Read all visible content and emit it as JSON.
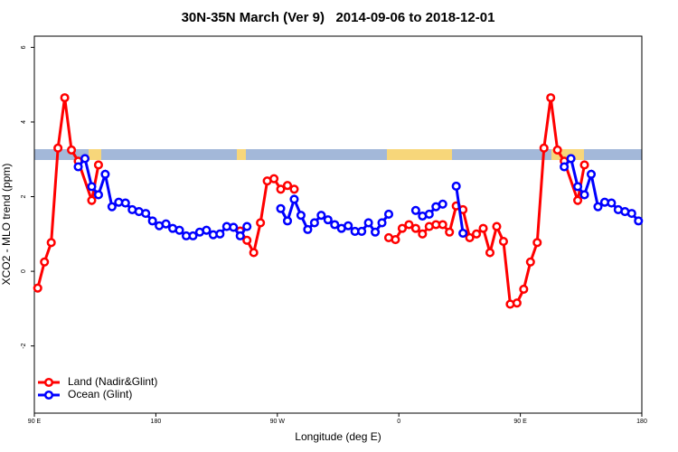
{
  "chart_data": {
    "type": "line",
    "title": "30N-35N March (Ver 9)   2014-09-06 to 2018-12-01",
    "x_label": "Longitude (deg E)",
    "y_label": "XCO2 - MLO trend (ppm)",
    "xlim": [
      90,
      540
    ],
    "ylim": [
      -3.8,
      6.3
    ],
    "xticks": [
      {
        "value": 90,
        "label": "90 E"
      },
      180,
      {
        "value": 270,
        "label": "90 W"
      },
      {
        "value": 360,
        "label": "0"
      },
      {
        "value": 450,
        "label": "90 E"
      },
      {
        "value": 540,
        "label": "180"
      }
    ],
    "yticks": [
      -2,
      0,
      2,
      4,
      6
    ],
    "legend": "bottom-left",
    "series": [
      {
        "name": "Land (Nadir&Glint)",
        "color": "#ff0000",
        "x": [
          92.5,
          97.5,
          102.5,
          107.5,
          112.5,
          117.5,
          122.5,
          132.5,
          137.5,
          190,
          242.5,
          247.5,
          252.5,
          257.5,
          262.5,
          267.5,
          272.5,
          277.5,
          282.5,
          317.5,
          352.5,
          357.5,
          362.5,
          367.5,
          372.5,
          377.5,
          382.5,
          387.5,
          392.5,
          397.5,
          402.5,
          407.5,
          412.5,
          417.5,
          422.5,
          427.5,
          432.5,
          437.5,
          442.5,
          447.5,
          452.5,
          457.5,
          462.5,
          467.5,
          472.5,
          477.5,
          482.5,
          492.5,
          497.5
        ],
        "values": [
          -0.45,
          0.25,
          0.77,
          3.3,
          4.65,
          3.25,
          2.95,
          1.9,
          2.85,
          null,
          1.08,
          0.83,
          0.5,
          1.3,
          2.42,
          2.48,
          2.2,
          2.3,
          2.2,
          null,
          0.9,
          0.85,
          1.15,
          1.25,
          1.15,
          1.0,
          1.2,
          1.25,
          1.25,
          1.05,
          1.75,
          1.65,
          0.9,
          1.0,
          1.15,
          0.5,
          1.2,
          0.8,
          -0.88,
          -0.85,
          -0.48,
          0.25,
          0.77,
          3.3,
          4.65,
          3.25,
          2.95,
          1.9,
          2.85
        ]
      },
      {
        "name": "Ocean (Glint)",
        "color": "#0000ff",
        "x": [
          122.5,
          127.5,
          132.5,
          137.5,
          142.5,
          147.5,
          152.5,
          157.5,
          162.5,
          167.5,
          172.5,
          177.5,
          182.5,
          187.5,
          192.5,
          197.5,
          202.5,
          207.5,
          212.5,
          217.5,
          222.5,
          227.5,
          232.5,
          237.5,
          242.5,
          247.5,
          260,
          272.5,
          277.5,
          282.5,
          287.5,
          292.5,
          297.5,
          302.5,
          307.5,
          312.5,
          317.5,
          322.5,
          327.5,
          332.5,
          337.5,
          342.5,
          347.5,
          352.5,
          362,
          372.5,
          377.5,
          382.5,
          387.5,
          392.5,
          397.5,
          402.5,
          407.5,
          440,
          482.5,
          487.5,
          492.5,
          497.5,
          502.5,
          507.5,
          512.5,
          517.5,
          522.5,
          527.5,
          532.5,
          537.5
        ],
        "values": [
          2.8,
          3.02,
          2.27,
          2.05,
          2.6,
          1.73,
          1.85,
          1.83,
          1.65,
          1.6,
          1.55,
          1.35,
          1.22,
          1.27,
          1.15,
          1.1,
          0.95,
          0.95,
          1.05,
          1.1,
          0.98,
          1.0,
          1.2,
          1.18,
          0.95,
          1.2,
          null,
          1.68,
          1.35,
          1.93,
          1.5,
          1.12,
          1.3,
          1.5,
          1.38,
          1.25,
          1.15,
          1.22,
          1.07,
          1.07,
          1.3,
          1.05,
          1.3,
          1.53,
          null,
          1.63,
          1.48,
          1.53,
          1.73,
          1.8,
          null,
          2.28,
          1.02,
          null,
          2.8,
          3.02,
          2.27,
          2.05,
          2.6,
          1.73,
          1.85,
          1.83,
          1.65,
          1.6,
          1.55,
          1.35
        ]
      }
    ]
  }
}
